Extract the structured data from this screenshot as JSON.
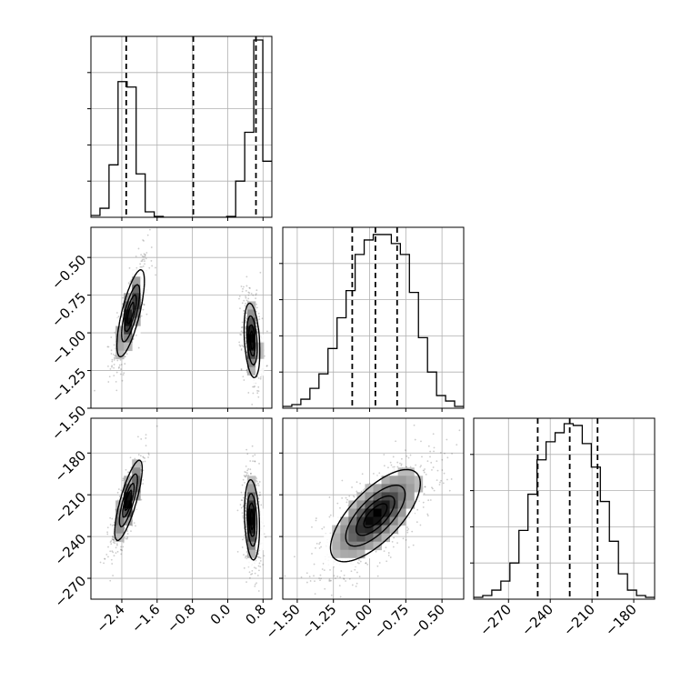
{
  "figure": {
    "kind": "corner plot",
    "parameter_count": 3,
    "colors": {
      "background": "#ffffff",
      "axis": "#000000",
      "grid": "#b0b0b0",
      "density_dark": "#000000",
      "density_light": "#ffffff",
      "scatter": "#555555",
      "quantile_line": "#000000"
    },
    "show_grid": true,
    "quantile_line_style": "dashed"
  },
  "chart_data": [
    {
      "id": "p0-hist",
      "type": "histogram",
      "position": "row 1, column 1",
      "param_index": 0,
      "xlim": [
        -3.1,
        1.0
      ],
      "ylim": [
        0,
        1.0
      ],
      "show_y_tick_labels": false,
      "show_x_tick_labels": false,
      "x_ticks": [
        -2.4,
        -1.6,
        -0.8,
        0.0,
        0.8
      ],
      "y_ticks": [
        0.2,
        0.4,
        0.6,
        0.8
      ],
      "bin_edges": [
        -3.1,
        -2.895,
        -2.69,
        -2.485,
        -2.28,
        -2.075,
        -1.87,
        -1.665,
        -1.46,
        -1.255,
        -1.05,
        -0.845,
        -0.64,
        -0.435,
        -0.23,
        -0.025,
        0.18,
        0.385,
        0.59,
        0.795,
        1.0
      ],
      "counts": [
        0.01,
        0.05,
        0.29,
        0.75,
        0.72,
        0.24,
        0.03,
        0.005,
        0,
        0,
        0,
        0,
        0,
        0,
        0,
        0.005,
        0.2,
        0.47,
        0.98,
        0.31
      ],
      "quantiles": [
        -2.3,
        -0.78,
        0.64
      ]
    },
    {
      "id": "p1-p0-2d",
      "type": "hist2d_contour",
      "position": "row 2, column 1",
      "x_param": 0,
      "y_param": 1,
      "xlim": [
        -3.1,
        1.0
      ],
      "ylim": [
        -1.5,
        -0.3
      ],
      "x_ticks": [
        -2.4,
        -1.6,
        -0.8,
        0.0,
        0.8
      ],
      "y_ticks": [
        -1.5,
        -1.25,
        -1.0,
        -0.75,
        -0.5
      ],
      "y_tick_labels": [
        "−1.50",
        "−1.25",
        "−1.00",
        "−0.75",
        "−0.50"
      ],
      "show_x_tick_labels": false,
      "modes": [
        {
          "center": [
            -2.2,
            -0.87
          ],
          "sd": [
            0.15,
            0.14
          ],
          "corr": 0.75,
          "weight": 0.5
        },
        {
          "center": [
            0.55,
            -1.05
          ],
          "sd": [
            0.085,
            0.12
          ],
          "corr": -0.3,
          "weight": 0.5
        }
      ],
      "contour_levels": [
        0.118,
        0.393,
        0.675,
        0.865
      ]
    },
    {
      "id": "p1-hist",
      "type": "histogram",
      "position": "row 2, column 2",
      "param_index": 1,
      "xlim": [
        -1.6,
        -0.35
      ],
      "ylim": [
        0,
        1.0
      ],
      "show_y_tick_labels": false,
      "show_x_tick_labels": false,
      "x_ticks": [
        -1.5,
        -1.25,
        -1.0,
        -0.75,
        -0.5
      ],
      "y_ticks": [
        0.2,
        0.4,
        0.6,
        0.8
      ],
      "bin_edges": [
        -1.6,
        -1.5375,
        -1.475,
        -1.4125,
        -1.35,
        -1.2875,
        -1.225,
        -1.1625,
        -1.1,
        -1.0375,
        -0.975,
        -0.9125,
        -0.85,
        -0.7875,
        -0.725,
        -0.6625,
        -0.6,
        -0.5375,
        -0.475,
        -0.4125,
        -0.35
      ],
      "counts": [
        0.01,
        0.02,
        0.05,
        0.11,
        0.19,
        0.33,
        0.5,
        0.65,
        0.85,
        0.93,
        0.96,
        0.96,
        0.91,
        0.85,
        0.64,
        0.39,
        0.2,
        0.07,
        0.04,
        0.01
      ],
      "quantiles": [
        -1.12,
        -0.96,
        -0.81
      ]
    },
    {
      "id": "p2-p0-2d",
      "type": "hist2d_contour",
      "position": "row 3, column 1",
      "x_param": 0,
      "y_param": 2,
      "xlim": [
        -3.1,
        1.0
      ],
      "ylim": [
        -285,
        -155
      ],
      "x_ticks": [
        -2.4,
        -1.6,
        -0.8,
        0.0,
        0.8
      ],
      "x_tick_labels": [
        "−2.4",
        "−1.6",
        "−0.8",
        "0.0",
        "0.8"
      ],
      "y_ticks": [
        -270,
        -240,
        -210,
        -180
      ],
      "y_tick_labels": [
        "−270",
        "−240",
        "−210",
        "−180"
      ],
      "modes": [
        {
          "center": [
            -2.25,
            -214
          ],
          "sd": [
            0.15,
            14
          ],
          "corr": 0.8,
          "weight": 0.5
        },
        {
          "center": [
            0.55,
            -228
          ],
          "sd": [
            0.08,
            14
          ],
          "corr": -0.2,
          "weight": 0.5
        }
      ],
      "contour_levels": [
        0.118,
        0.393,
        0.675,
        0.865
      ]
    },
    {
      "id": "p2-p1-2d",
      "type": "hist2d_contour",
      "position": "row 3, column 2",
      "x_param": 1,
      "y_param": 2,
      "xlim": [
        -1.6,
        -0.35
      ],
      "ylim": [
        -285,
        -155
      ],
      "x_ticks": [
        -1.5,
        -1.25,
        -1.0,
        -0.75,
        -0.5
      ],
      "x_tick_labels": [
        "−1.50",
        "−1.25",
        "−1.00",
        "−0.75",
        "−0.50"
      ],
      "y_ticks": [
        -270,
        -240,
        -210,
        -180
      ],
      "show_y_tick_labels": false,
      "modes": [
        {
          "center": [
            -0.96,
            -225
          ],
          "sd": [
            0.15,
            16
          ],
          "corr": 0.7,
          "weight": 1.0
        }
      ],
      "contour_levels": [
        0.118,
        0.393,
        0.675,
        0.865
      ]
    },
    {
      "id": "p2-hist",
      "type": "histogram",
      "position": "row 3, column 3",
      "param_index": 2,
      "xlim": [
        -295,
        -165
      ],
      "ylim": [
        0,
        1.0
      ],
      "show_y_tick_labels": false,
      "x_ticks": [
        -270,
        -240,
        -210,
        -180
      ],
      "x_tick_labels": [
        "−270",
        "−240",
        "−210",
        "−180"
      ],
      "y_ticks": [
        0.2,
        0.4,
        0.6,
        0.8
      ],
      "bin_edges": [
        -295,
        -288.5,
        -282,
        -275.5,
        -269,
        -262.5,
        -256,
        -249.5,
        -243,
        -236.5,
        -230,
        -223.5,
        -217,
        -210.5,
        -204,
        -197.5,
        -191,
        -184.5,
        -178,
        -171.5,
        -165
      ],
      "counts": [
        0.01,
        0.02,
        0.05,
        0.1,
        0.2,
        0.38,
        0.58,
        0.77,
        0.87,
        0.92,
        0.97,
        0.96,
        0.86,
        0.73,
        0.54,
        0.32,
        0.14,
        0.05,
        0.02,
        0.01
      ],
      "quantiles": [
        -249,
        -226,
        -206
      ]
    }
  ]
}
